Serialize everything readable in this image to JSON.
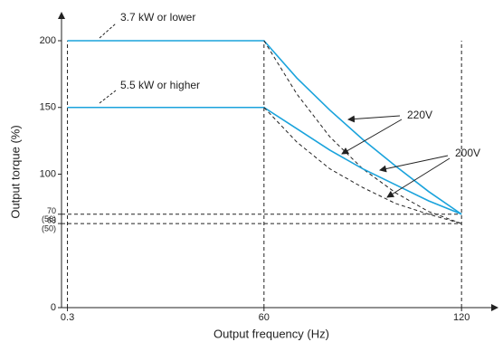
{
  "chart_data": {
    "type": "line",
    "x_label": "Output frequency (Hz)",
    "y_label": "Output torque (%)",
    "xlim": [
      -1.5,
      126
    ],
    "ylim": [
      0,
      200
    ],
    "xticks": [
      0.3,
      60,
      120
    ],
    "yticks": [
      0,
      {
        "value": 63,
        "label": "63",
        "sub_label": "(50)"
      },
      {
        "value": 70,
        "label": "70",
        "sub_label": "(56)"
      },
      100,
      150,
      200
    ],
    "x": [
      0.3,
      60,
      70,
      80,
      90,
      100,
      110,
      120
    ],
    "series": [
      {
        "color": "#1aa3dc",
        "dash": false,
        "values": [
          200,
          200,
          172,
          148,
          126,
          106,
          87,
          70
        ]
      },
      {
        "color": "#222222",
        "dash": true,
        "values": [
          null,
          200,
          160,
          128,
          104,
          86,
          72,
          63
        ]
      },
      {
        "color": "#1aa3dc",
        "dash": false,
        "values": [
          150,
          150,
          134,
          118,
          104,
          92,
          80,
          70
        ]
      },
      {
        "color": "#222222",
        "dash": true,
        "values": [
          null,
          150,
          124,
          104,
          90,
          78,
          70,
          63
        ]
      }
    ],
    "annotations": [
      "3.7 kW or lower",
      "5.5 kW or higher",
      "220V",
      "200V"
    ]
  }
}
